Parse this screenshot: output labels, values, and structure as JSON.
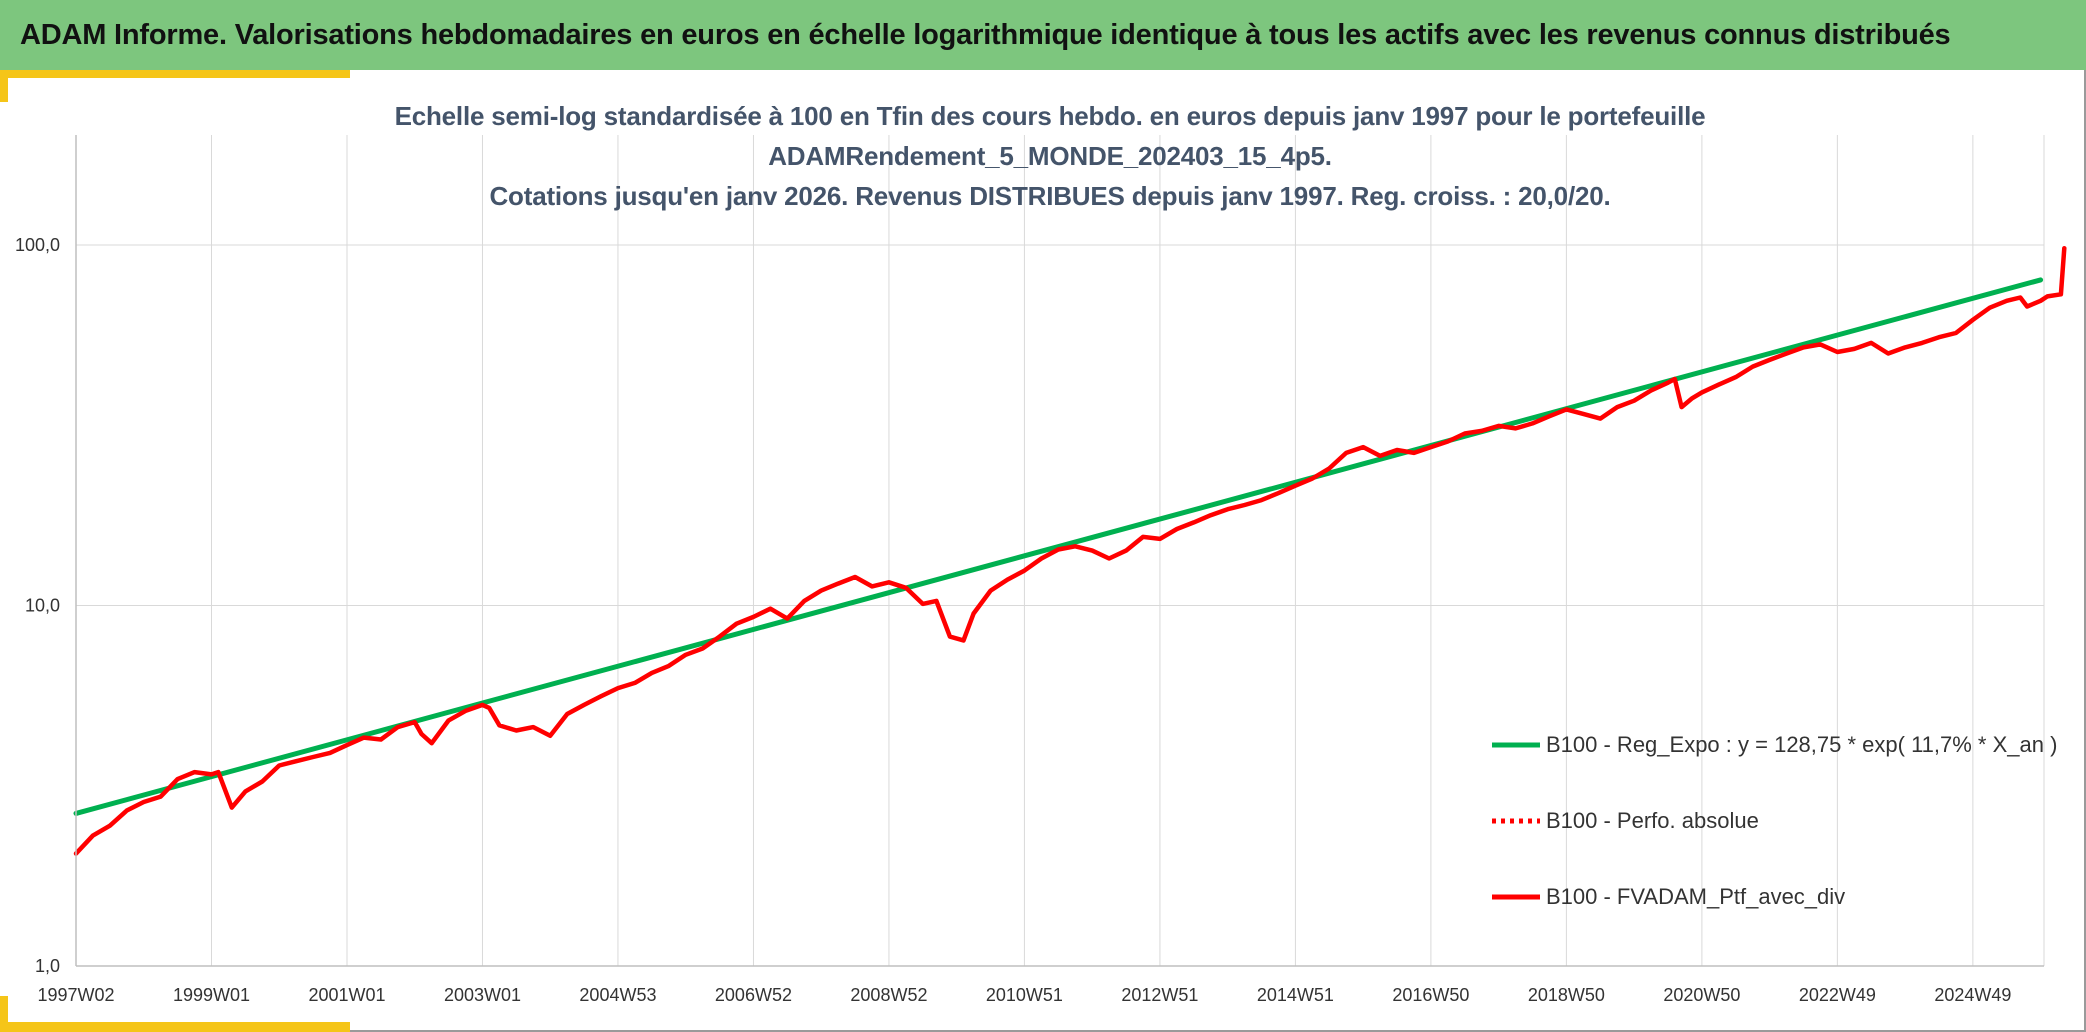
{
  "header": {
    "title": "ADAM Informe. Valorisations hebdomadaires en euros en échelle logarithmique identique à tous les actifs avec les revenus connus distribués"
  },
  "colors": {
    "header_bg": "#7dc67e",
    "accent": "#f5c518",
    "title_text": "#44546a",
    "regression": "#00b050",
    "series": "#ff0000",
    "grid": "#d9d9d9"
  },
  "chart_data": {
    "type": "line",
    "title_lines": [
      "Echelle semi-log standardisée à 100 en Tfin des cours hebdo. en euros depuis janv 1997 pour le portefeuille",
      "ADAMRendement_5_MONDE_202403_15_4p5.",
      "Cotations jusqu'en janv 2026. Revenus DISTRIBUES depuis janv 1997. Reg. croiss. : 20,0/20."
    ],
    "y_scale": "log",
    "ylim": [
      1,
      100
    ],
    "y_ticks": [
      {
        "value": 1,
        "label": "1,0"
      },
      {
        "value": 10,
        "label": "10,0"
      },
      {
        "value": 100,
        "label": "100,0"
      }
    ],
    "xlim": [
      1997.0,
      2026.05
    ],
    "x_ticks": [
      {
        "value": 1997.0,
        "label": "1997W02"
      },
      {
        "value": 1999.0,
        "label": "1999W01"
      },
      {
        "value": 2001.0,
        "label": "2001W01"
      },
      {
        "value": 2003.0,
        "label": "2003W01"
      },
      {
        "value": 2005.0,
        "label": "2004W53"
      },
      {
        "value": 2007.0,
        "label": "2006W52"
      },
      {
        "value": 2009.0,
        "label": "2008W52"
      },
      {
        "value": 2011.0,
        "label": "2010W51"
      },
      {
        "value": 2013.0,
        "label": "2012W51"
      },
      {
        "value": 2015.0,
        "label": "2014W51"
      },
      {
        "value": 2017.0,
        "label": "2016W50"
      },
      {
        "value": 2019.0,
        "label": "2018W50"
      },
      {
        "value": 2021.0,
        "label": "2020W50"
      },
      {
        "value": 2023.0,
        "label": "2022W49"
      },
      {
        "value": 2025.0,
        "label": "2024W49"
      }
    ],
    "legend_position": "bottom-right",
    "grid": true,
    "series": [
      {
        "name": "B100 - Reg_Expo : y = 128,75 * exp( 11,7% *  X_an )",
        "style": "solid-green",
        "points": [
          [
            1997.0,
            2.65
          ],
          [
            2026.0,
            80.0
          ]
        ]
      },
      {
        "name": "B100 - Perfo. absolue",
        "style": "dotted-red",
        "points": []
      },
      {
        "name": "B100 - FVADAM_Ptf_avec_div",
        "style": "solid-red",
        "points": [
          [
            1997.0,
            2.05
          ],
          [
            1997.25,
            2.3
          ],
          [
            1997.5,
            2.45
          ],
          [
            1997.75,
            2.7
          ],
          [
            1998.0,
            2.85
          ],
          [
            1998.25,
            2.95
          ],
          [
            1998.5,
            3.3
          ],
          [
            1998.75,
            3.45
          ],
          [
            1999.0,
            3.4
          ],
          [
            1999.1,
            3.45
          ],
          [
            1999.3,
            2.75
          ],
          [
            1999.5,
            3.05
          ],
          [
            1999.75,
            3.25
          ],
          [
            2000.0,
            3.6
          ],
          [
            2000.25,
            3.7
          ],
          [
            2000.5,
            3.8
          ],
          [
            2000.75,
            3.9
          ],
          [
            2001.0,
            4.1
          ],
          [
            2001.25,
            4.3
          ],
          [
            2001.5,
            4.25
          ],
          [
            2001.75,
            4.6
          ],
          [
            2002.0,
            4.75
          ],
          [
            2002.1,
            4.4
          ],
          [
            2002.25,
            4.15
          ],
          [
            2002.5,
            4.8
          ],
          [
            2002.75,
            5.1
          ],
          [
            2003.0,
            5.3
          ],
          [
            2003.1,
            5.2
          ],
          [
            2003.25,
            4.65
          ],
          [
            2003.5,
            4.5
          ],
          [
            2003.75,
            4.6
          ],
          [
            2004.0,
            4.35
          ],
          [
            2004.25,
            5.0
          ],
          [
            2004.5,
            5.3
          ],
          [
            2004.75,
            5.6
          ],
          [
            2005.0,
            5.9
          ],
          [
            2005.25,
            6.1
          ],
          [
            2005.5,
            6.5
          ],
          [
            2005.75,
            6.8
          ],
          [
            2006.0,
            7.3
          ],
          [
            2006.25,
            7.6
          ],
          [
            2006.5,
            8.2
          ],
          [
            2006.75,
            8.9
          ],
          [
            2007.0,
            9.3
          ],
          [
            2007.25,
            9.8
          ],
          [
            2007.5,
            9.2
          ],
          [
            2007.75,
            10.3
          ],
          [
            2008.0,
            11.0
          ],
          [
            2008.25,
            11.5
          ],
          [
            2008.5,
            12.0
          ],
          [
            2008.75,
            11.3
          ],
          [
            2009.0,
            11.6
          ],
          [
            2009.25,
            11.2
          ],
          [
            2009.5,
            10.1
          ],
          [
            2009.7,
            10.3
          ],
          [
            2009.9,
            8.2
          ],
          [
            2010.1,
            8.0
          ],
          [
            2010.25,
            9.5
          ],
          [
            2010.5,
            11.0
          ],
          [
            2010.75,
            11.8
          ],
          [
            2011.0,
            12.5
          ],
          [
            2011.25,
            13.5
          ],
          [
            2011.5,
            14.3
          ],
          [
            2011.75,
            14.6
          ],
          [
            2012.0,
            14.2
          ],
          [
            2012.25,
            13.5
          ],
          [
            2012.5,
            14.2
          ],
          [
            2012.75,
            15.5
          ],
          [
            2013.0,
            15.3
          ],
          [
            2013.25,
            16.3
          ],
          [
            2013.5,
            17.0
          ],
          [
            2013.75,
            17.8
          ],
          [
            2014.0,
            18.5
          ],
          [
            2014.25,
            19.0
          ],
          [
            2014.5,
            19.6
          ],
          [
            2014.75,
            20.5
          ],
          [
            2015.0,
            21.5
          ],
          [
            2015.25,
            22.5
          ],
          [
            2015.5,
            24.0
          ],
          [
            2015.75,
            26.5
          ],
          [
            2016.0,
            27.5
          ],
          [
            2016.25,
            26.0
          ],
          [
            2016.5,
            27.0
          ],
          [
            2016.75,
            26.5
          ],
          [
            2017.0,
            27.5
          ],
          [
            2017.25,
            28.5
          ],
          [
            2017.5,
            30.0
          ],
          [
            2017.75,
            30.5
          ],
          [
            2018.0,
            31.5
          ],
          [
            2018.25,
            31.0
          ],
          [
            2018.5,
            32.0
          ],
          [
            2018.75,
            33.5
          ],
          [
            2019.0,
            35.0
          ],
          [
            2019.25,
            34.0
          ],
          [
            2019.5,
            33.0
          ],
          [
            2019.75,
            35.5
          ],
          [
            2020.0,
            37.0
          ],
          [
            2020.25,
            39.5
          ],
          [
            2020.5,
            41.5
          ],
          [
            2020.6,
            42.5
          ],
          [
            2020.7,
            35.5
          ],
          [
            2020.85,
            37.5
          ],
          [
            2021.0,
            39.0
          ],
          [
            2021.25,
            41.0
          ],
          [
            2021.5,
            43.0
          ],
          [
            2021.75,
            46.0
          ],
          [
            2022.0,
            48.0
          ],
          [
            2022.25,
            50.0
          ],
          [
            2022.5,
            52.0
          ],
          [
            2022.75,
            53.0
          ],
          [
            2023.0,
            50.5
          ],
          [
            2023.25,
            51.5
          ],
          [
            2023.5,
            53.5
          ],
          [
            2023.75,
            50.0
          ],
          [
            2024.0,
            52.0
          ],
          [
            2024.25,
            53.5
          ],
          [
            2024.5,
            55.5
          ],
          [
            2024.75,
            57.0
          ],
          [
            2025.0,
            62.0
          ],
          [
            2025.25,
            67.0
          ],
          [
            2025.5,
            70.0
          ],
          [
            2025.7,
            71.5
          ],
          [
            2025.8,
            67.5
          ],
          [
            2026.0,
            70.0
          ],
          [
            2026.1,
            72.0
          ],
          [
            2026.3,
            73.0
          ],
          [
            2026.35,
            98.0
          ]
        ]
      }
    ]
  }
}
